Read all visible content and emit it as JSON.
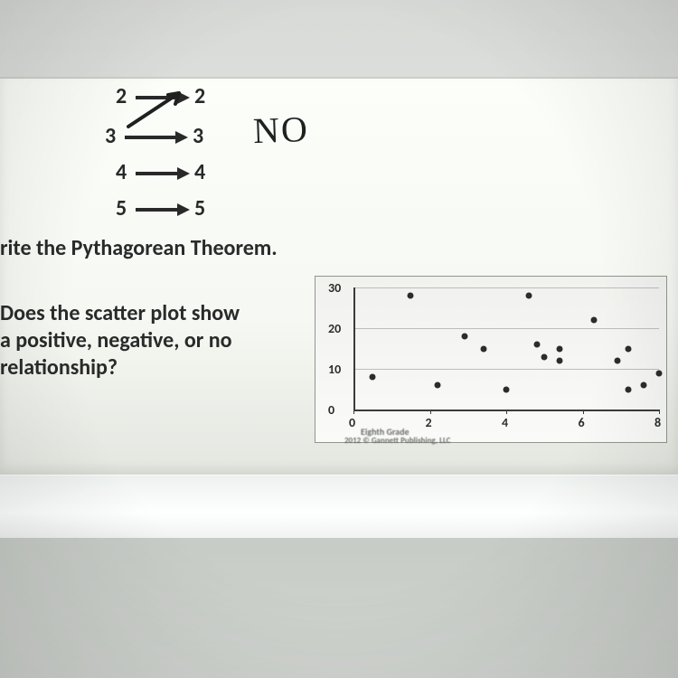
{
  "mapping": {
    "rows": [
      {
        "left": "2",
        "right": "2",
        "x": 128,
        "y": 92,
        "arrow_w": 46
      },
      {
        "left": "3",
        "right": "3",
        "x": 116,
        "y": 136,
        "arrow_w": 56
      },
      {
        "left": "4",
        "right": "4",
        "x": 128,
        "y": 176,
        "arrow_w": 46
      },
      {
        "left": "5",
        "right": "5",
        "x": 128,
        "y": 216,
        "arrow_w": 46
      }
    ],
    "handwritten_answer": "NO",
    "extra_arrow": {
      "from_row": 1,
      "to_row": 0
    }
  },
  "question1": "rite the Pythagorean Theorem.",
  "question2_line1": "Does the scatter plot show",
  "question2_line2": "a positive, negative, or no",
  "question2_line3": "relationship?",
  "chart": {
    "type": "scatter",
    "xlim": [
      0,
      8
    ],
    "ylim": [
      0,
      30
    ],
    "xticks": [
      0,
      2,
      4,
      6,
      8
    ],
    "yticks": [
      0,
      10,
      20,
      30
    ],
    "grid_color": "#b9bcb7",
    "axis_color": "#3a3d3a",
    "background_color": "#f0f1ee",
    "dot_color": "#2c2e2b",
    "points": [
      {
        "x": 0.5,
        "y": 8
      },
      {
        "x": 1.5,
        "y": 28
      },
      {
        "x": 2.2,
        "y": 6
      },
      {
        "x": 2.9,
        "y": 18
      },
      {
        "x": 3.4,
        "y": 15
      },
      {
        "x": 4.0,
        "y": 5
      },
      {
        "x": 4.6,
        "y": 28
      },
      {
        "x": 4.8,
        "y": 16
      },
      {
        "x": 5.0,
        "y": 13
      },
      {
        "x": 5.4,
        "y": 15
      },
      {
        "x": 5.4,
        "y": 12
      },
      {
        "x": 6.3,
        "y": 22
      },
      {
        "x": 6.9,
        "y": 12
      },
      {
        "x": 7.2,
        "y": 5
      },
      {
        "x": 7.2,
        "y": 15
      },
      {
        "x": 7.6,
        "y": 6
      },
      {
        "x": 8.0,
        "y": 9
      }
    ]
  },
  "footer": {
    "line1": "Eighth Grade",
    "line2": "2012 © Gannett Publishing, LLC"
  },
  "colors": {
    "text": "#2b2b2b",
    "handwriting": "#222222"
  }
}
